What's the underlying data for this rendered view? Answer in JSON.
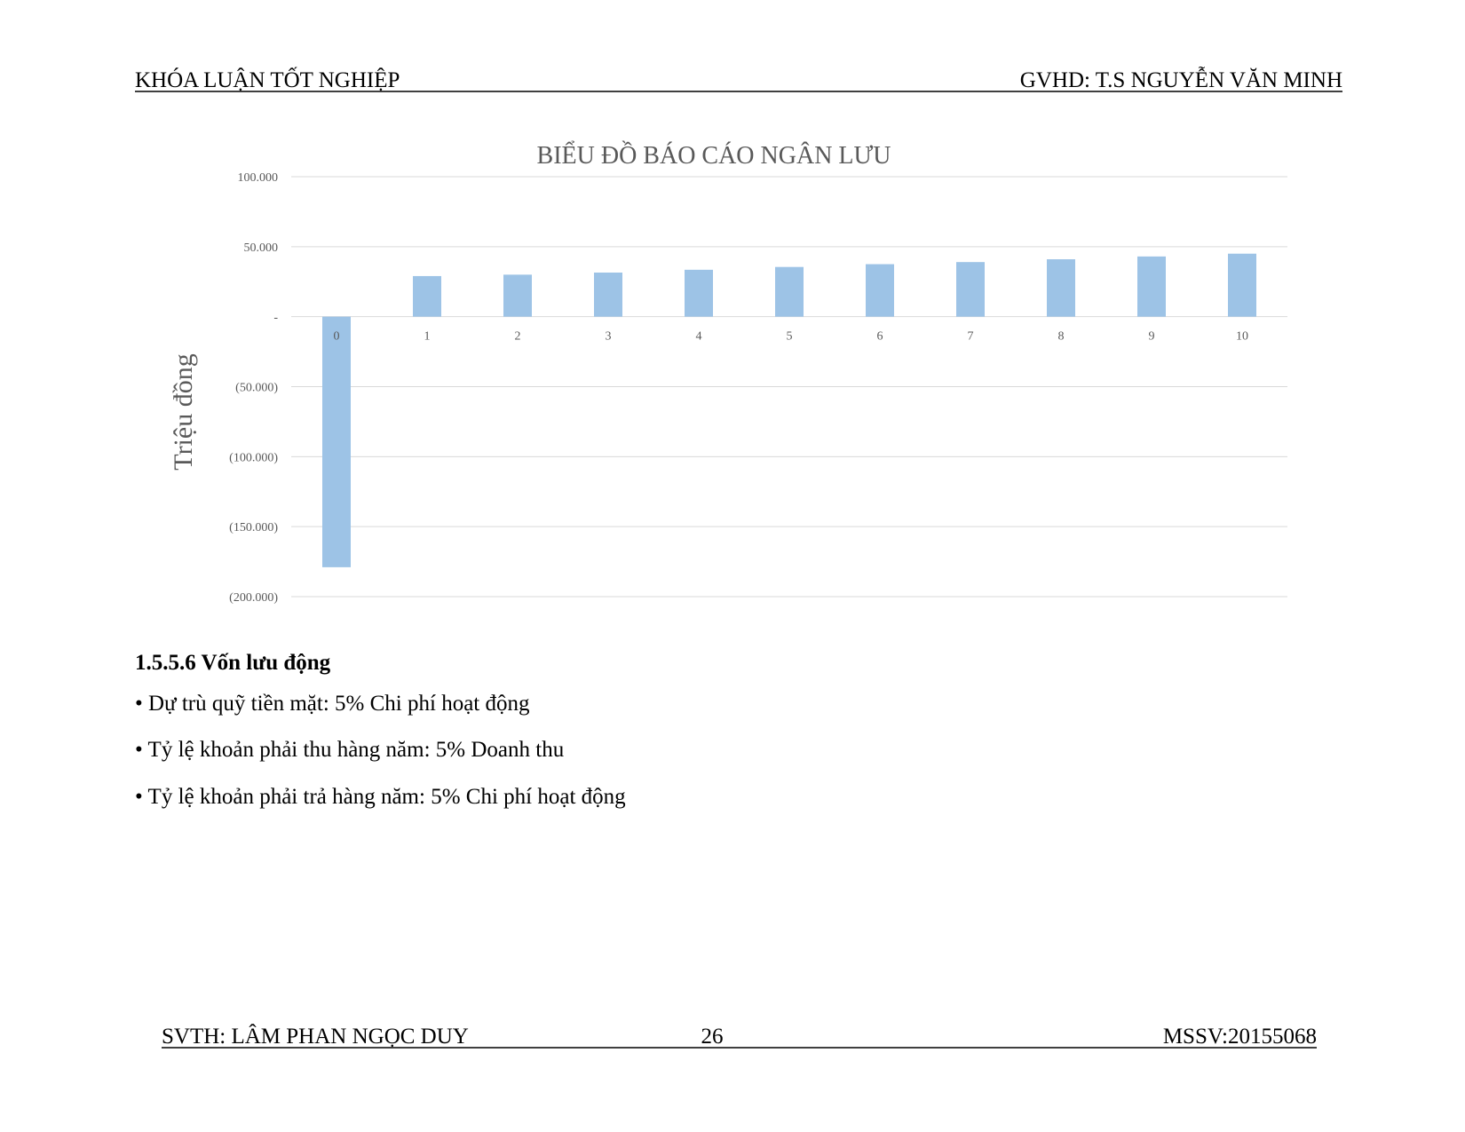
{
  "header": {
    "left": "KHÓA LUẬN TỐT NGHIỆP",
    "right": "GVHD: T.S NGUYỄN VĂN MINH"
  },
  "chart_data": {
    "type": "bar",
    "title": "BIỂU ĐỒ BÁO CÁO NGÂN LƯU",
    "y_label": "Triệu đồng",
    "categories": [
      "0",
      "1",
      "2",
      "3",
      "4",
      "5",
      "6",
      "7",
      "8",
      "9",
      "10"
    ],
    "values": [
      -179000,
      29000,
      30000,
      31500,
      33500,
      35500,
      37500,
      39000,
      41000,
      43000,
      45000
    ],
    "color": "#9dc3e6",
    "ylim": [
      -200000,
      100000
    ],
    "yticks": [
      {
        "value": -200000,
        "label": "(200.000)"
      },
      {
        "value": -150000,
        "label": "(150.000)"
      },
      {
        "value": -100000,
        "label": "(100.000)"
      },
      {
        "value": -50000,
        "label": "(50.000)"
      },
      {
        "value": 0,
        "label": "-"
      },
      {
        "value": 50000,
        "label": "50.000"
      },
      {
        "value": 100000,
        "label": "100.000"
      }
    ],
    "grid": true
  },
  "section": {
    "heading": "1.5.5.6 Vốn lưu động",
    "bullets": [
      "• Dự trù quỹ tiền mặt: 5% Chi phí hoạt động",
      "• Tỷ lệ khoản phải thu hàng năm: 5% Doanh thu",
      "• Tỷ lệ khoản phải trả hàng năm: 5% Chi phí hoạt động"
    ]
  },
  "footer": {
    "left": "SVTH: LÂM PHAN NGỌC DUY",
    "page": "26",
    "right": "MSSV:20155068"
  }
}
